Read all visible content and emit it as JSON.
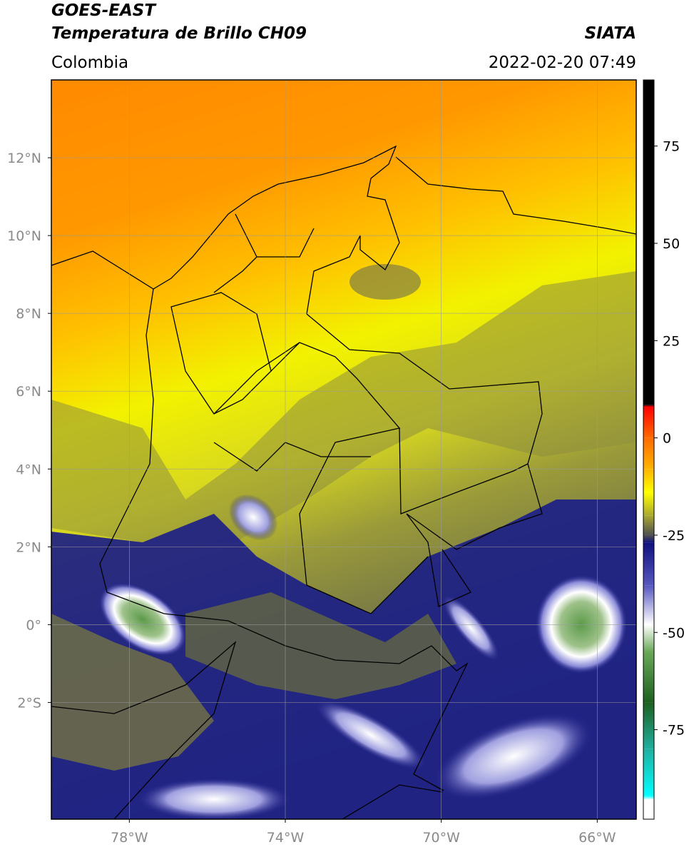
{
  "header": {
    "title": "GOES-EAST",
    "subtitle": "Temperatura de Brillo CH09",
    "source": "SIATA",
    "region": "Colombia",
    "datetime": "2022-02-20 07:49"
  },
  "map": {
    "xlim": [
      -80,
      -65
    ],
    "ylim": [
      -5,
      14
    ],
    "xticks": [
      {
        "value": -78,
        "label": "78°W"
      },
      {
        "value": -74,
        "label": "74°W"
      },
      {
        "value": -70,
        "label": "70°W"
      },
      {
        "value": -66,
        "label": "66°W"
      }
    ],
    "yticks": [
      {
        "value": 12,
        "label": "12°N"
      },
      {
        "value": 10,
        "label": "10°N"
      },
      {
        "value": 8,
        "label": "8°N"
      },
      {
        "value": 6,
        "label": "6°N"
      },
      {
        "value": 4,
        "label": "4°N"
      },
      {
        "value": 2,
        "label": "2°N"
      },
      {
        "value": 0,
        "label": "0°"
      },
      {
        "value": -2,
        "label": "2°S"
      }
    ],
    "grid": true
  },
  "colorbar": {
    "lim": [
      -98,
      92
    ],
    "ticks": [
      75,
      50,
      25,
      0,
      -25,
      -50,
      -75
    ],
    "stops": [
      {
        "value": 92,
        "color": "#000000"
      },
      {
        "value": 8.5,
        "color": "#000000"
      },
      {
        "value": 8,
        "color": "#ff0000"
      },
      {
        "value": 0,
        "color": "#ff6a00"
      },
      {
        "value": -8,
        "color": "#ffb400"
      },
      {
        "value": -14,
        "color": "#ffff00"
      },
      {
        "value": -20,
        "color": "#a8a830"
      },
      {
        "value": -25,
        "color": "#505050"
      },
      {
        "value": -27,
        "color": "#101080"
      },
      {
        "value": -38,
        "color": "#5858c0"
      },
      {
        "value": -48,
        "color": "#ffffff"
      },
      {
        "value": -55,
        "color": "#68a858"
      },
      {
        "value": -68,
        "color": "#1e6020"
      },
      {
        "value": -80,
        "color": "#20b0a0"
      },
      {
        "value": -92,
        "color": "#00ffff"
      },
      {
        "value": -93,
        "color": "#ffffff"
      },
      {
        "value": -98,
        "color": "#ffffff"
      }
    ]
  }
}
